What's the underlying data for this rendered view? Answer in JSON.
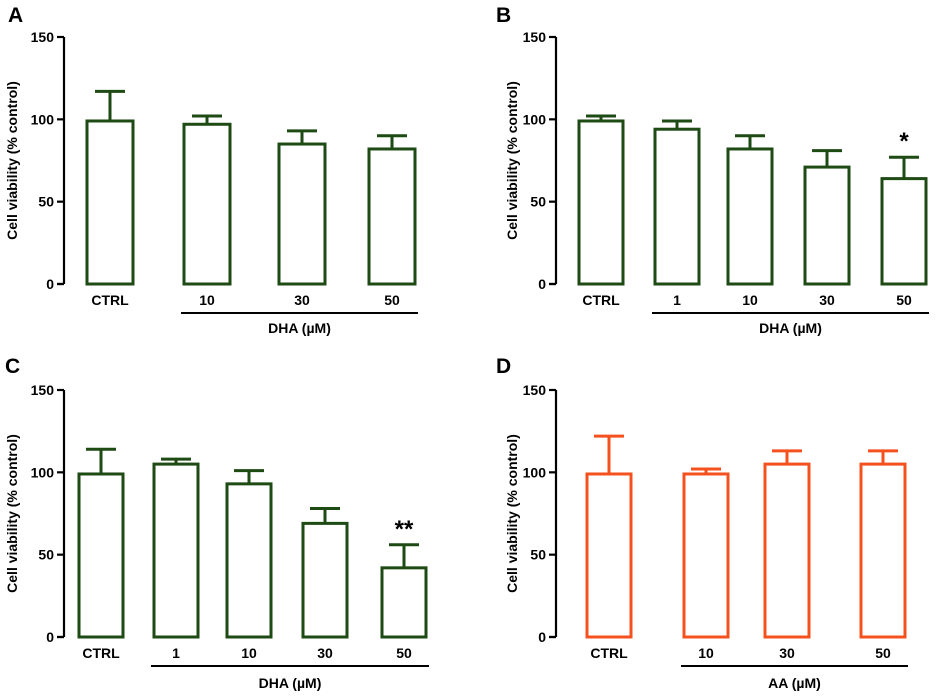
{
  "chart_data": [
    {
      "type": "bar",
      "panel": "A",
      "ylabel": "Cell viability (% control)",
      "xlabel": "",
      "ylim": [
        0,
        150
      ],
      "yticks": [
        0,
        50,
        100,
        150
      ],
      "categories": [
        "CTRL",
        "10",
        "30",
        "50"
      ],
      "values": [
        99,
        97,
        85,
        82
      ],
      "errors": [
        18,
        5,
        8,
        8
      ],
      "significance": [
        "",
        "",
        "",
        ""
      ],
      "group_label": "DHA (µM)",
      "group_span": [
        1,
        3
      ],
      "color": "#1e4a14"
    },
    {
      "type": "bar",
      "panel": "B",
      "ylabel": "Cell viability (% control)",
      "xlabel": "",
      "ylim": [
        0,
        150
      ],
      "yticks": [
        0,
        50,
        100,
        150
      ],
      "categories": [
        "CTRL",
        "1",
        "10",
        "30",
        "50"
      ],
      "values": [
        99,
        94,
        82,
        71,
        64
      ],
      "errors": [
        3,
        5,
        8,
        10,
        13
      ],
      "significance": [
        "",
        "",
        "",
        "",
        "*"
      ],
      "group_label": "DHA (µM)",
      "group_span": [
        1,
        4
      ],
      "color": "#1e4a14"
    },
    {
      "type": "bar",
      "panel": "C",
      "ylabel": "Cell viability (% control)",
      "xlabel": "",
      "ylim": [
        0,
        150
      ],
      "yticks": [
        0,
        50,
        100,
        150
      ],
      "categories": [
        "CTRL",
        "1",
        "10",
        "30",
        "50"
      ],
      "values": [
        99,
        105,
        93,
        69,
        42
      ],
      "errors": [
        15,
        3,
        8,
        9,
        14
      ],
      "significance": [
        "",
        "",
        "",
        "",
        "**"
      ],
      "group_label": "DHA (µM)",
      "group_span": [
        1,
        4
      ],
      "color": "#1e4a14"
    },
    {
      "type": "bar",
      "panel": "D",
      "ylabel": "Cell viability (% control)",
      "xlabel": "",
      "ylim": [
        0,
        150
      ],
      "yticks": [
        0,
        50,
        100,
        150
      ],
      "categories": [
        "CTRL",
        "10",
        "30",
        "50"
      ],
      "values": [
        99,
        99,
        105,
        105
      ],
      "errors": [
        23,
        3,
        8,
        8
      ],
      "significance": [
        "",
        "",
        "",
        ""
      ],
      "group_label": "AA (µM)",
      "group_span": [
        1,
        3
      ],
      "color": "#f4511e"
    }
  ]
}
